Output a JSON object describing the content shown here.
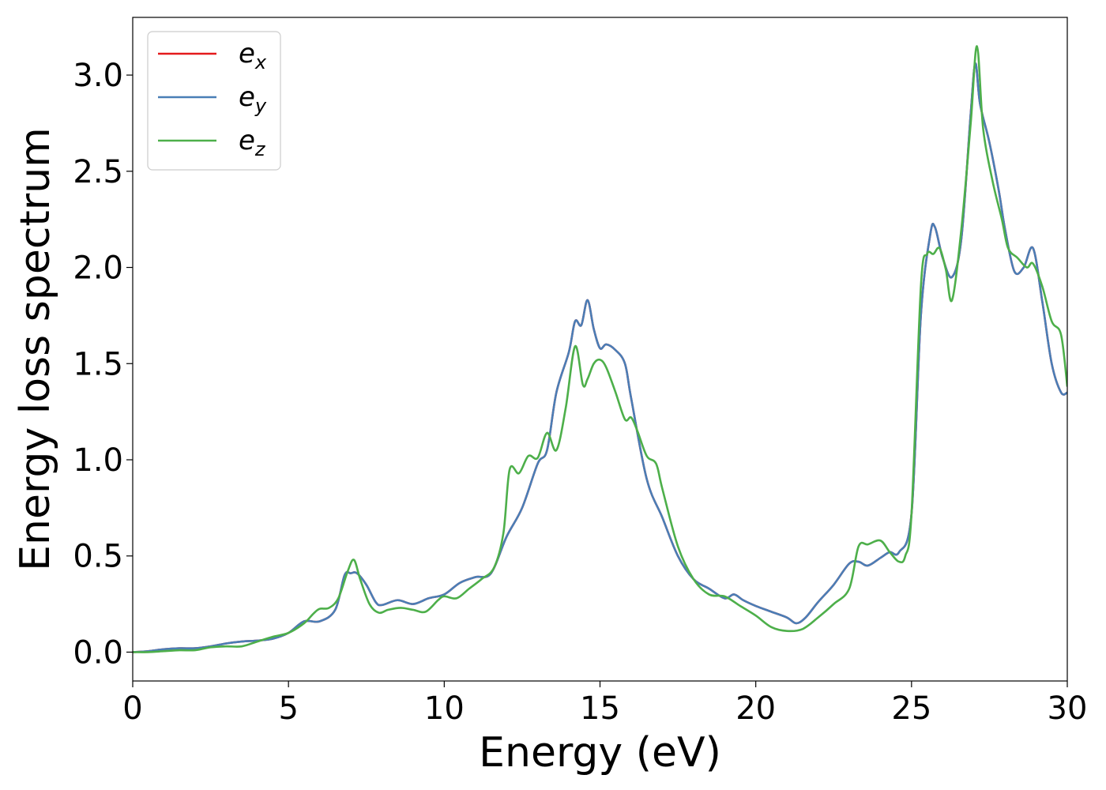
{
  "chart_data": {
    "type": "line",
    "xlabel": "Energy (eV)",
    "ylabel": "Energy loss spectrum",
    "xlim": [
      0,
      30
    ],
    "ylim": [
      -0.15,
      3.3
    ],
    "xticks": [
      0,
      5,
      10,
      15,
      20,
      25,
      30
    ],
    "xtick_labels": [
      "0",
      "5",
      "10",
      "15",
      "20",
      "25",
      "30"
    ],
    "yticks": [
      0.0,
      0.5,
      1.0,
      1.5,
      2.0,
      2.5,
      3.0
    ],
    "ytick_labels": [
      "0.0",
      "0.5",
      "1.0",
      "1.5",
      "2.0",
      "2.5",
      "3.0"
    ],
    "grid": false,
    "legend_position": "top-left",
    "series": [
      {
        "name": "e",
        "subscript": "x",
        "color": "#e41a1c",
        "x": [
          0,
          0.5,
          1,
          1.5,
          2,
          2.5,
          3,
          3.5,
          4,
          4.5,
          5,
          5.5,
          6,
          6.5,
          6.8,
          7,
          7.2,
          7.5,
          7.8,
          8,
          8.5,
          9,
          9.5,
          10,
          10.5,
          11,
          11.5,
          12,
          12.5,
          13,
          13.3,
          13.6,
          14,
          14.2,
          14.4,
          14.6,
          14.8,
          15,
          15.2,
          15.5,
          15.8,
          16,
          16.5,
          17,
          17.5,
          18,
          18.5,
          19,
          19.3,
          19.6,
          20,
          20.5,
          21,
          21.3,
          21.6,
          22,
          22.5,
          23,
          23.3,
          23.6,
          24,
          24.3,
          24.6,
          25,
          25.3,
          25.6,
          25.75,
          26,
          26.3,
          26.6,
          26.9,
          27.05,
          27.2,
          27.5,
          27.8,
          28,
          28.3,
          28.6,
          28.9,
          29.2,
          29.5,
          29.8,
          30
        ],
        "y": [
          0.0,
          0.005,
          0.015,
          0.02,
          0.02,
          0.03,
          0.045,
          0.055,
          0.06,
          0.07,
          0.1,
          0.16,
          0.16,
          0.22,
          0.4,
          0.41,
          0.41,
          0.35,
          0.26,
          0.245,
          0.27,
          0.25,
          0.28,
          0.3,
          0.36,
          0.39,
          0.41,
          0.6,
          0.75,
          0.98,
          1.05,
          1.35,
          1.56,
          1.72,
          1.7,
          1.83,
          1.68,
          1.58,
          1.6,
          1.57,
          1.5,
          1.32,
          0.9,
          0.7,
          0.5,
          0.38,
          0.33,
          0.28,
          0.3,
          0.27,
          0.24,
          0.21,
          0.18,
          0.15,
          0.18,
          0.26,
          0.35,
          0.46,
          0.47,
          0.45,
          0.49,
          0.52,
          0.52,
          0.72,
          1.75,
          2.17,
          2.21,
          2.05,
          1.95,
          2.15,
          2.8,
          3.06,
          2.85,
          2.65,
          2.4,
          2.2,
          1.98,
          2.0,
          2.1,
          1.82,
          1.5,
          1.35,
          1.35
        ]
      },
      {
        "name": "e",
        "subscript": "y",
        "color": "#4a7eb6",
        "x": [
          0,
          0.5,
          1,
          1.5,
          2,
          2.5,
          3,
          3.5,
          4,
          4.5,
          5,
          5.5,
          6,
          6.5,
          6.8,
          7,
          7.2,
          7.5,
          7.8,
          8,
          8.5,
          9,
          9.5,
          10,
          10.5,
          11,
          11.5,
          12,
          12.5,
          13,
          13.3,
          13.6,
          14,
          14.2,
          14.4,
          14.6,
          14.8,
          15,
          15.2,
          15.5,
          15.8,
          16,
          16.5,
          17,
          17.5,
          18,
          18.5,
          19,
          19.3,
          19.6,
          20,
          20.5,
          21,
          21.3,
          21.6,
          22,
          22.5,
          23,
          23.3,
          23.6,
          24,
          24.3,
          24.6,
          25,
          25.3,
          25.6,
          25.75,
          26,
          26.3,
          26.6,
          26.9,
          27.05,
          27.2,
          27.5,
          27.8,
          28,
          28.3,
          28.6,
          28.9,
          29.2,
          29.5,
          29.8,
          30
        ],
        "y": [
          0.0,
          0.005,
          0.015,
          0.02,
          0.02,
          0.03,
          0.045,
          0.055,
          0.06,
          0.07,
          0.1,
          0.16,
          0.16,
          0.22,
          0.4,
          0.41,
          0.41,
          0.35,
          0.26,
          0.245,
          0.27,
          0.25,
          0.28,
          0.3,
          0.36,
          0.39,
          0.41,
          0.6,
          0.75,
          0.98,
          1.05,
          1.35,
          1.56,
          1.72,
          1.7,
          1.83,
          1.68,
          1.58,
          1.6,
          1.57,
          1.5,
          1.32,
          0.9,
          0.7,
          0.5,
          0.38,
          0.33,
          0.28,
          0.3,
          0.27,
          0.24,
          0.21,
          0.18,
          0.15,
          0.18,
          0.26,
          0.35,
          0.46,
          0.47,
          0.45,
          0.49,
          0.52,
          0.52,
          0.72,
          1.75,
          2.17,
          2.21,
          2.05,
          1.95,
          2.15,
          2.8,
          3.06,
          2.85,
          2.65,
          2.4,
          2.2,
          1.98,
          2.0,
          2.1,
          1.82,
          1.5,
          1.35,
          1.35
        ]
      },
      {
        "name": "e",
        "subscript": "z",
        "color": "#4daf4a",
        "x": [
          0,
          0.5,
          1,
          1.5,
          2,
          2.5,
          3,
          3.5,
          4,
          4.5,
          5,
          5.5,
          5.8,
          6,
          6.3,
          6.6,
          6.9,
          7.1,
          7.3,
          7.6,
          7.9,
          8.2,
          8.6,
          9,
          9.4,
          9.8,
          10,
          10.4,
          10.8,
          11.2,
          11.6,
          11.9,
          12.1,
          12.4,
          12.7,
          13,
          13.3,
          13.6,
          13.9,
          14.2,
          14.45,
          14.6,
          14.8,
          15,
          15.2,
          15.5,
          15.8,
          16,
          16.2,
          16.5,
          16.8,
          17,
          17.5,
          18,
          18.5,
          19,
          19.5,
          20,
          20.5,
          21,
          21.5,
          22,
          22.5,
          23,
          23.3,
          23.6,
          24,
          24.3,
          24.6,
          24.8,
          25,
          25.3,
          25.5,
          25.7,
          25.9,
          26.1,
          26.3,
          26.6,
          26.9,
          27.1,
          27.3,
          27.6,
          27.9,
          28.1,
          28.4,
          28.7,
          28.9,
          29.2,
          29.5,
          29.8,
          30
        ],
        "y": [
          0.0,
          0.0,
          0.005,
          0.01,
          0.01,
          0.025,
          0.03,
          0.03,
          0.055,
          0.08,
          0.1,
          0.15,
          0.2,
          0.225,
          0.23,
          0.28,
          0.42,
          0.48,
          0.38,
          0.25,
          0.205,
          0.22,
          0.23,
          0.22,
          0.21,
          0.27,
          0.29,
          0.28,
          0.33,
          0.38,
          0.44,
          0.62,
          0.95,
          0.93,
          1.02,
          1.01,
          1.14,
          1.05,
          1.27,
          1.59,
          1.39,
          1.42,
          1.5,
          1.52,
          1.48,
          1.35,
          1.21,
          1.22,
          1.15,
          1.02,
          0.98,
          0.85,
          0.55,
          0.38,
          0.3,
          0.29,
          0.24,
          0.19,
          0.13,
          0.11,
          0.12,
          0.18,
          0.25,
          0.33,
          0.55,
          0.56,
          0.58,
          0.52,
          0.47,
          0.5,
          0.72,
          1.9,
          2.07,
          2.07,
          2.1,
          1.99,
          1.83,
          2.2,
          2.75,
          3.15,
          2.72,
          2.45,
          2.25,
          2.1,
          2.05,
          2.0,
          2.02,
          1.9,
          1.72,
          1.65,
          1.38
        ]
      }
    ]
  }
}
